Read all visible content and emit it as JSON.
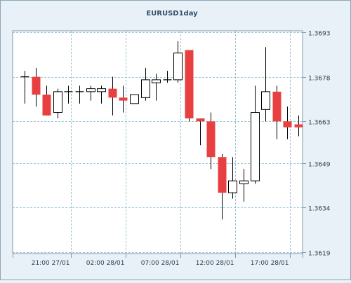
{
  "chart_data": {
    "type": "candlestick",
    "title": "EURUSD1day",
    "xlabel": "",
    "ylabel": "",
    "y_range": [
      1.3619,
      1.3693
    ],
    "y_ticks": [
      "1.3693",
      "1.3678",
      "1.3663",
      "1.3649",
      "1.3634",
      "1.3619"
    ],
    "x_ticks": [
      {
        "label": "21:00 27/01",
        "index": 4.2
      },
      {
        "label": "02:00 28/01",
        "index": 9.2
      },
      {
        "label": "07:00 28/01",
        "index": 14.2
      },
      {
        "label": "12:00 28/01",
        "index": 19.2
      },
      {
        "label": "17:00 28/01",
        "index": 24.2
      }
    ],
    "grid": true,
    "colors": {
      "bearish": "#e84040",
      "bullish": "#ffffff",
      "wick": "#000000",
      "grid": "#7fb3cc",
      "frame": "#7f9aa8",
      "background": "#e8f1f8",
      "plot": "#ffffff"
    },
    "candles": [
      {
        "open": 1.3678,
        "high": 1.368,
        "low": 1.3669,
        "close": 1.3678
      },
      {
        "open": 1.3678,
        "high": 1.3681,
        "low": 1.3668,
        "close": 1.3672
      },
      {
        "open": 1.3672,
        "high": 1.3675,
        "low": 1.3665,
        "close": 1.3665
      },
      {
        "open": 1.3666,
        "high": 1.3674,
        "low": 1.3664,
        "close": 1.3673
      },
      {
        "open": 1.3673,
        "high": 1.3675,
        "low": 1.3669,
        "close": 1.3673
      },
      {
        "open": 1.3673,
        "high": 1.3675,
        "low": 1.3669,
        "close": 1.3673
      },
      {
        "open": 1.3673,
        "high": 1.3675,
        "low": 1.367,
        "close": 1.3674
      },
      {
        "open": 1.3673,
        "high": 1.3675,
        "low": 1.3669,
        "close": 1.3674
      },
      {
        "open": 1.3674,
        "high": 1.3678,
        "low": 1.3665,
        "close": 1.3671
      },
      {
        "open": 1.3671,
        "high": 1.3675,
        "low": 1.3666,
        "close": 1.367
      },
      {
        "open": 1.3669,
        "high": 1.3672,
        "low": 1.3669,
        "close": 1.3672
      },
      {
        "open": 1.3671,
        "high": 1.3681,
        "low": 1.367,
        "close": 1.3677
      },
      {
        "open": 1.3676,
        "high": 1.3679,
        "low": 1.367,
        "close": 1.3677
      },
      {
        "open": 1.3677,
        "high": 1.368,
        "low": 1.3676,
        "close": 1.3677
      },
      {
        "open": 1.3677,
        "high": 1.369,
        "low": 1.3676,
        "close": 1.3686
      },
      {
        "open": 1.3687,
        "high": 1.3687,
        "low": 1.3663,
        "close": 1.3664
      },
      {
        "open": 1.3664,
        "high": 1.3664,
        "low": 1.3655,
        "close": 1.3663
      },
      {
        "open": 1.3663,
        "high": 1.3666,
        "low": 1.3647,
        "close": 1.3651
      },
      {
        "open": 1.3651,
        "high": 1.3652,
        "low": 1.363,
        "close": 1.3639
      },
      {
        "open": 1.3639,
        "high": 1.3651,
        "low": 1.3637,
        "close": 1.3643
      },
      {
        "open": 1.3642,
        "high": 1.3647,
        "low": 1.3636,
        "close": 1.3643
      },
      {
        "open": 1.3643,
        "high": 1.3675,
        "low": 1.3642,
        "close": 1.3666
      },
      {
        "open": 1.3667,
        "high": 1.3688,
        "low": 1.3663,
        "close": 1.3673
      },
      {
        "open": 1.3673,
        "high": 1.3675,
        "low": 1.3657,
        "close": 1.3663
      },
      {
        "open": 1.3663,
        "high": 1.3668,
        "low": 1.3657,
        "close": 1.3661
      },
      {
        "open": 1.3662,
        "high": 1.3665,
        "low": 1.3658,
        "close": 1.3661
      }
    ]
  }
}
